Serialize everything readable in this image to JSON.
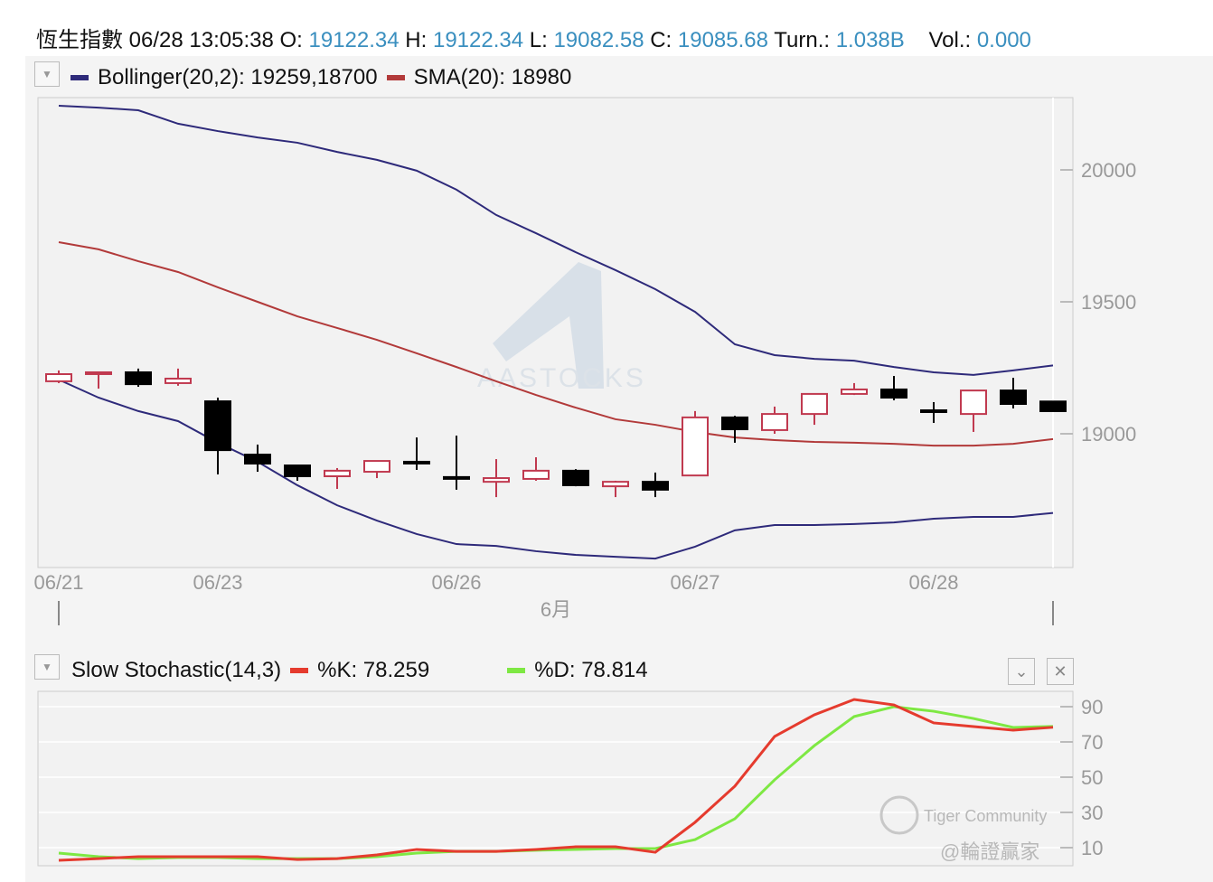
{
  "header": {
    "name": "恆生指數",
    "datetime": "06/28 13:05:38",
    "open_label": "O:",
    "open": "19122.34",
    "high_label": "H:",
    "high": "19122.34",
    "low_label": "L:",
    "low": "19082.58",
    "close_label": "C:",
    "close": "19085.68",
    "turn_label": "Turn.:",
    "turn": "1.038B",
    "vol_label": "Vol.:",
    "vol": "0.000"
  },
  "main_legend": {
    "bollinger": "Bollinger(20,2): 19259,18700",
    "sma": "SMA(20): 18980"
  },
  "stoch_legend": {
    "title": "Slow Stochastic(14,3)",
    "k": "%K: 78.259",
    "d": "%D: 78.814"
  },
  "watermarks": {
    "center": "AASTOCKS",
    "corner_1": "Tiger Community",
    "corner_2": "@輪證贏家"
  },
  "colors": {
    "bollinger": "#2e2a7a",
    "sma": "#b23a3a",
    "up": "#c0394f",
    "down": "#000000",
    "k": "#e53b2e",
    "d": "#7ee843",
    "value": "#3a8fbf"
  },
  "chart_data": [
    {
      "type": "candlestick",
      "x_tick_labels": [
        "06/21",
        "06/23",
        "06/26",
        "06/27",
        "06/28"
      ],
      "x_tick_index": [
        0,
        4,
        10,
        16,
        22
      ],
      "x_label": "6月",
      "y_ticks": [
        19000,
        19500,
        20000
      ],
      "ylim": [
        18420,
        20300
      ],
      "candles": [
        {
          "o": 19199,
          "h": 19240,
          "l": 19192,
          "c": 19226
        },
        {
          "o": 19230,
          "h": 19236,
          "l": 19171,
          "c": 19233
        },
        {
          "o": 19233,
          "h": 19247,
          "l": 19178,
          "c": 19188
        },
        {
          "o": 19192,
          "h": 19247,
          "l": 19182,
          "c": 19209
        },
        {
          "o": 19123,
          "h": 19137,
          "l": 18846,
          "c": 18938
        },
        {
          "o": 18921,
          "h": 18959,
          "l": 18856,
          "c": 18887
        },
        {
          "o": 18880,
          "h": 18880,
          "l": 18822,
          "c": 18839
        },
        {
          "o": 18839,
          "h": 18870,
          "l": 18791,
          "c": 18860
        },
        {
          "o": 18856,
          "h": 18897,
          "l": 18832,
          "c": 18897
        },
        {
          "o": 18894,
          "h": 18986,
          "l": 18863,
          "c": 18890
        },
        {
          "o": 18836,
          "h": 18993,
          "l": 18788,
          "c": 18832
        },
        {
          "o": 18818,
          "h": 18904,
          "l": 18760,
          "c": 18832
        },
        {
          "o": 18829,
          "h": 18911,
          "l": 18822,
          "c": 18860
        },
        {
          "o": 18860,
          "h": 18866,
          "l": 18801,
          "c": 18805
        },
        {
          "o": 18801,
          "h": 18822,
          "l": 18760,
          "c": 18818
        },
        {
          "o": 18818,
          "h": 18853,
          "l": 18760,
          "c": 18788
        },
        {
          "o": 18842,
          "h": 19086,
          "l": 18839,
          "c": 19062
        },
        {
          "o": 19062,
          "h": 19068,
          "l": 18966,
          "c": 19017
        },
        {
          "o": 19014,
          "h": 19103,
          "l": 19000,
          "c": 19075
        },
        {
          "o": 19075,
          "h": 19151,
          "l": 19034,
          "c": 19151
        },
        {
          "o": 19151,
          "h": 19192,
          "l": 19147,
          "c": 19168
        },
        {
          "o": 19168,
          "h": 19219,
          "l": 19127,
          "c": 19137
        },
        {
          "o": 19089,
          "h": 19120,
          "l": 19041,
          "c": 19086
        },
        {
          "o": 19075,
          "h": 19164,
          "l": 19007,
          "c": 19164
        },
        {
          "o": 19164,
          "h": 19212,
          "l": 19096,
          "c": 19113
        },
        {
          "o": 19122.34,
          "h": 19122.34,
          "l": 19082.58,
          "c": 19085.68
        }
      ],
      "series": [
        {
          "name": "Bollinger upper",
          "values": [
            20243,
            20236,
            20226,
            20175,
            20147,
            20123,
            20103,
            20068,
            20038,
            19997,
            19925,
            19829,
            19760,
            19688,
            19620,
            19548,
            19462,
            19339,
            19298,
            19284,
            19277,
            19253,
            19233,
            19223,
            19240,
            19259
          ]
        },
        {
          "name": "SMA(20)",
          "values": [
            19726,
            19699,
            19654,
            19613,
            19555,
            19500,
            19445,
            19401,
            19356,
            19305,
            19253,
            19199,
            19147,
            19099,
            19055,
            19034,
            19007,
            18986,
            18976,
            18969,
            18966,
            18962,
            18955,
            18955,
            18962,
            18980
          ]
        },
        {
          "name": "Bollinger lower",
          "values": [
            19205,
            19137,
            19086,
            19048,
            18966,
            18894,
            18805,
            18729,
            18671,
            18620,
            18582,
            18575,
            18555,
            18541,
            18534,
            18527,
            18572,
            18634,
            18654,
            18654,
            18658,
            18664,
            18678,
            18685,
            18685,
            18700
          ]
        }
      ]
    },
    {
      "type": "line",
      "y_ticks": [
        10,
        30,
        50,
        70,
        90
      ],
      "ylim": [
        0,
        98
      ],
      "series": [
        {
          "name": "%K",
          "values": [
            2.8,
            3.8,
            4.9,
            4.9,
            4.9,
            4.9,
            3.3,
            3.8,
            5.9,
            9.0,
            7.9,
            7.9,
            9.0,
            10.5,
            10.5,
            7.4,
            24.4,
            44.9,
            73.1,
            85.4,
            94.1,
            91.0,
            80.8,
            78.7,
            76.7,
            78.3
          ]
        },
        {
          "name": "%D",
          "values": [
            6.9,
            4.9,
            3.8,
            4.4,
            4.4,
            3.8,
            3.8,
            3.8,
            4.9,
            6.9,
            7.9,
            7.9,
            8.5,
            9.0,
            9.5,
            9.5,
            14.6,
            26.4,
            48.5,
            67.9,
            84.4,
            90.0,
            87.4,
            83.3,
            78.2,
            78.8
          ]
        }
      ]
    }
  ]
}
